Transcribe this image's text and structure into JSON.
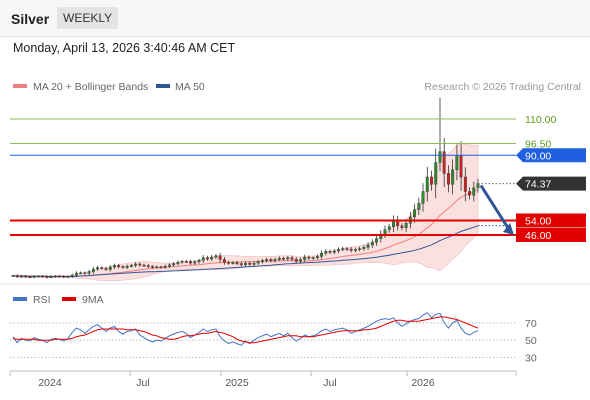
{
  "header": {
    "title": "Silver",
    "period": "WEEKLY"
  },
  "datetime": "Monday, April 13, 2026 3:40:46 AM CET",
  "legend": {
    "bollinger": "MA 20 + Bollinger Bands",
    "ma50": "MA 50"
  },
  "copyright": "Research © 2026 Trading Central",
  "colors": {
    "bollinger": "#f08080",
    "ma50": "#2f5597",
    "rsi": "#4472c4",
    "rsi_ma": "#e00000",
    "support": "#e00000",
    "resistance_green": "#8fbc5a",
    "pivot": "#1f5fe0",
    "current": "#333333"
  },
  "levels": [
    {
      "value": 110.0,
      "label": "110.00",
      "kind": "resistance-line"
    },
    {
      "value": 96.5,
      "label": "96.50",
      "kind": "resistance-line"
    },
    {
      "value": 90.0,
      "label": "90.00",
      "kind": "pivot"
    },
    {
      "value": 74.37,
      "label": "74.37",
      "kind": "current-price"
    },
    {
      "value": 54.0,
      "label": "54.00",
      "kind": "support"
    },
    {
      "value": 46.0,
      "label": "46.00",
      "kind": "support"
    }
  ],
  "rsi_panel": {
    "legend_rsi": "RSI",
    "legend_ma": "9MA",
    "levels": [
      "70",
      "50",
      "30"
    ]
  },
  "chart_data": {
    "type": "line",
    "x_ticks": [
      "2024",
      "Jul",
      "2025",
      "Jul",
      "2026"
    ],
    "price_weekly_close": [
      23.6,
      23.0,
      23.4,
      23.0,
      22.8,
      23.2,
      23.3,
      23.1,
      22.7,
      23.0,
      23.3,
      23.2,
      22.9,
      23.1,
      23.9,
      25.0,
      25.2,
      24.9,
      25.8,
      27.2,
      28.0,
      27.6,
      27.0,
      28.3,
      29.2,
      28.5,
      28.1,
      28.8,
      29.2,
      30.0,
      29.4,
      29.1,
      28.6,
      28.2,
      28.4,
      28.2,
      28.8,
      29.5,
      30.2,
      31.0,
      31.5,
      31.3,
      30.5,
      31.2,
      32.0,
      33.5,
      32.8,
      33.8,
      34.5,
      32.5,
      31.0,
      30.5,
      30.8,
      30.2,
      29.5,
      30.5,
      29.8,
      30.5,
      31.2,
      31.8,
      32.5,
      31.8,
      32.5,
      33.2,
      32.8,
      33.5,
      32.6,
      31.5,
      32.5,
      33.8,
      33.2,
      33.5,
      34.2,
      36.0,
      37.0,
      36.5,
      37.2,
      38.0,
      38.5,
      38.2,
      37.5,
      38.0,
      38.5,
      39.2,
      40.5,
      42.0,
      44.0,
      46.5,
      49.0,
      50.5,
      54.0,
      51.0,
      50.0,
      52.5,
      56.0,
      60.0,
      63.5,
      70.0,
      78.0,
      74.0,
      86.0,
      92.0,
      80.0,
      74.0,
      82.0,
      90.0,
      78.0,
      70.0,
      68.0,
      72.0,
      74.37
    ],
    "price_axis_ticks": [
      110.0,
      96.5,
      90.0,
      74.37,
      54.0,
      46.0
    ],
    "series": [
      {
        "name": "MA 20 + Bollinger Bands"
      },
      {
        "name": "MA 50"
      },
      {
        "name": "RSI"
      },
      {
        "name": "9MA"
      }
    ],
    "rsi_values": [
      54,
      47,
      52,
      50,
      49,
      53,
      51,
      50,
      47,
      51,
      52,
      51,
      49,
      52,
      59,
      64,
      62,
      58,
      62,
      66,
      68,
      64,
      60,
      64,
      66,
      60,
      57,
      60,
      61,
      63,
      56,
      53,
      50,
      48,
      50,
      49,
      52,
      55,
      57,
      59,
      60,
      58,
      53,
      56,
      59,
      63,
      60,
      62,
      63,
      54,
      49,
      46,
      48,
      46,
      44,
      49,
      46,
      50,
      53,
      55,
      57,
      54,
      56,
      58,
      55,
      58,
      53,
      49,
      52,
      56,
      54,
      55,
      57,
      61,
      63,
      60,
      62,
      63,
      64,
      62,
      58,
      60,
      62,
      64,
      66,
      69,
      72,
      74,
      75,
      74,
      76,
      70,
      66,
      69,
      72,
      74,
      75,
      79,
      82,
      76,
      80,
      81,
      70,
      64,
      70,
      73,
      64,
      58,
      56,
      59,
      61
    ],
    "rsi_ma_values": [
      52,
      51,
      51,
      51,
      51,
      51,
      50,
      50,
      50,
      50,
      51,
      51,
      51,
      51,
      52,
      54,
      55,
      56,
      58,
      60,
      62,
      63,
      63,
      63,
      63,
      63,
      63,
      62,
      62,
      62,
      61,
      60,
      58,
      56,
      55,
      53,
      52,
      51,
      51,
      52,
      54,
      55,
      55,
      56,
      57,
      58,
      58,
      59,
      60,
      59,
      58,
      56,
      54,
      51,
      49,
      48,
      47,
      47,
      48,
      49,
      50,
      51,
      52,
      53,
      54,
      55,
      55,
      55,
      54,
      54,
      54,
      54,
      55,
      56,
      57,
      58,
      59,
      60,
      61,
      61,
      61,
      61,
      61,
      62,
      62,
      63,
      64,
      66,
      68,
      70,
      72,
      73,
      73,
      72,
      72,
      72,
      72,
      73,
      74,
      75,
      76,
      77,
      77,
      76,
      75,
      74,
      72,
      70,
      68,
      66,
      64
    ],
    "rsi_ylim": [
      20,
      85
    ],
    "annotation": "projected decline arrow from 74.37 toward 46.00"
  }
}
